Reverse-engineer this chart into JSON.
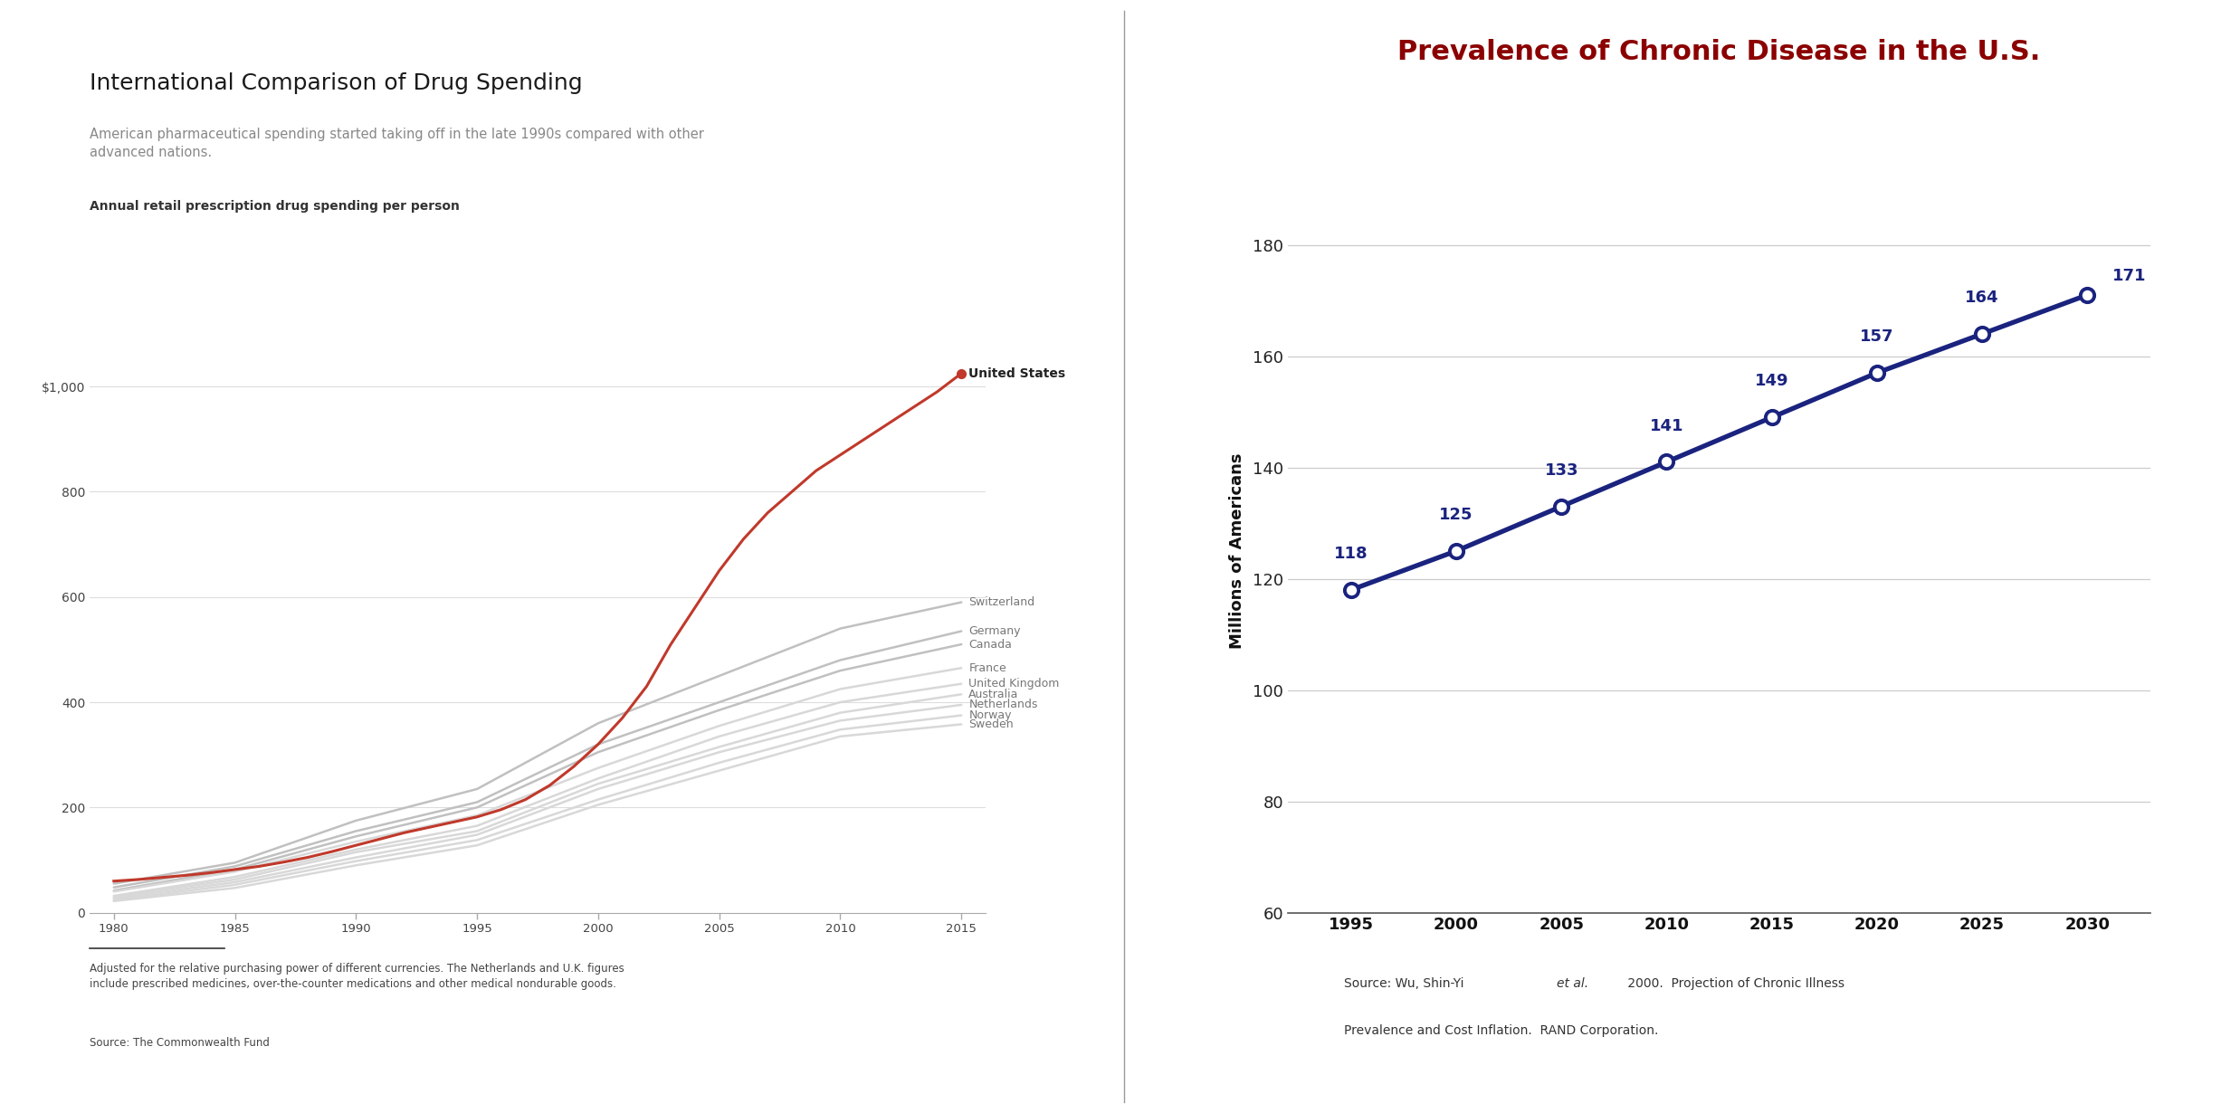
{
  "left_title": "International Comparison of Drug Spending",
  "left_subtitle": "American pharmaceutical spending started taking off in the late 1990s compared with other\nadvanced nations.",
  "left_axis_label": "Annual retail prescription drug spending per person",
  "left_footnote": "Adjusted for the relative purchasing power of different currencies. The Netherlands and U.K. figures\ninclude prescribed medicines, over-the-counter medications and other medical nondurable goods.",
  "left_source": "Source: The Commonwealth Fund",
  "us_years": [
    1980,
    1981,
    1982,
    1983,
    1984,
    1985,
    1986,
    1987,
    1988,
    1989,
    1990,
    1991,
    1992,
    1993,
    1994,
    1995,
    1996,
    1997,
    1998,
    1999,
    2000,
    2001,
    2002,
    2003,
    2004,
    2005,
    2006,
    2007,
    2008,
    2009,
    2010,
    2011,
    2012,
    2013,
    2014,
    2015
  ],
  "us_values": [
    60,
    63,
    67,
    71,
    76,
    82,
    88,
    96,
    105,
    116,
    128,
    140,
    152,
    162,
    172,
    182,
    196,
    215,
    242,
    278,
    320,
    370,
    430,
    510,
    580,
    650,
    710,
    760,
    800,
    840,
    870,
    900,
    930,
    960,
    990,
    1025
  ],
  "other_countries": [
    {
      "name": "Switzerland",
      "color": "#c0c0c0",
      "years": [
        1980,
        1985,
        1990,
        1995,
        2000,
        2005,
        2010,
        2015
      ],
      "values": [
        55,
        95,
        175,
        235,
        360,
        450,
        540,
        590
      ]
    },
    {
      "name": "Germany",
      "color": "#c0c0c0",
      "years": [
        1980,
        1985,
        1990,
        1995,
        2000,
        2005,
        2010,
        2015
      ],
      "values": [
        48,
        88,
        155,
        210,
        320,
        400,
        480,
        535
      ]
    },
    {
      "name": "Canada",
      "color": "#c0c0c0",
      "years": [
        1980,
        1985,
        1990,
        1995,
        2000,
        2005,
        2010,
        2015
      ],
      "values": [
        42,
        82,
        145,
        200,
        305,
        385,
        460,
        510
      ]
    },
    {
      "name": "France",
      "color": "#d8d8d8",
      "years": [
        1980,
        1985,
        1990,
        1995,
        2000,
        2005,
        2010,
        2015
      ],
      "values": [
        40,
        78,
        135,
        185,
        275,
        355,
        425,
        465
      ]
    },
    {
      "name": "United Kingdom",
      "color": "#d8d8d8",
      "years": [
        1980,
        1985,
        1990,
        1995,
        2000,
        2005,
        2010,
        2015
      ],
      "values": [
        32,
        68,
        120,
        165,
        255,
        335,
        400,
        435
      ]
    },
    {
      "name": "Australia",
      "color": "#d8d8d8",
      "years": [
        1980,
        1985,
        1990,
        1995,
        2000,
        2005,
        2010,
        2015
      ],
      "values": [
        30,
        63,
        115,
        155,
        245,
        315,
        380,
        415
      ]
    },
    {
      "name": "Netherlands",
      "color": "#d8d8d8",
      "years": [
        1980,
        1985,
        1990,
        1995,
        2000,
        2005,
        2010,
        2015
      ],
      "values": [
        27,
        58,
        105,
        148,
        235,
        305,
        365,
        395
      ]
    },
    {
      "name": "Norway",
      "color": "#d8d8d8",
      "years": [
        1980,
        1985,
        1990,
        1995,
        2000,
        2005,
        2010,
        2015
      ],
      "values": [
        24,
        53,
        98,
        138,
        215,
        285,
        348,
        375
      ]
    },
    {
      "name": "Sweden",
      "color": "#d8d8d8",
      "years": [
        1980,
        1985,
        1990,
        1995,
        2000,
        2005,
        2010,
        2015
      ],
      "values": [
        22,
        47,
        90,
        128,
        205,
        270,
        335,
        358
      ]
    }
  ],
  "us_color": "#c0392b",
  "left_ylim": [
    0,
    1100
  ],
  "left_yticks": [
    0,
    200,
    400,
    600,
    800,
    1000
  ],
  "left_ytick_labels": [
    "0",
    "200",
    "400",
    "600",
    "800",
    "$1,000"
  ],
  "left_xticks": [
    1980,
    1985,
    1990,
    1995,
    2000,
    2005,
    2010,
    2015
  ],
  "right_title": "Prevalence of Chronic Disease in the U.S.",
  "right_ylabel": "Millions of Americans",
  "right_source_normal": "Source: Wu, Shin-Yi ",
  "right_source_italic": "et al.",
  "right_source_rest": " 2000.  Projection of Chronic Illness\nPrevalence and Cost Inflation.  RAND Corporation.",
  "chronic_years": [
    1995,
    2000,
    2005,
    2010,
    2015,
    2020,
    2025,
    2030
  ],
  "chronic_values": [
    118,
    125,
    133,
    141,
    149,
    157,
    164,
    171
  ],
  "chronic_color": "#1a237e",
  "right_ylim": [
    60,
    190
  ],
  "right_yticks": [
    60,
    80,
    100,
    120,
    140,
    160,
    180
  ],
  "right_xticks": [
    1995,
    2000,
    2005,
    2010,
    2015,
    2020,
    2025,
    2030
  ],
  "bg_color": "#ffffff",
  "divider_color": "#999999"
}
